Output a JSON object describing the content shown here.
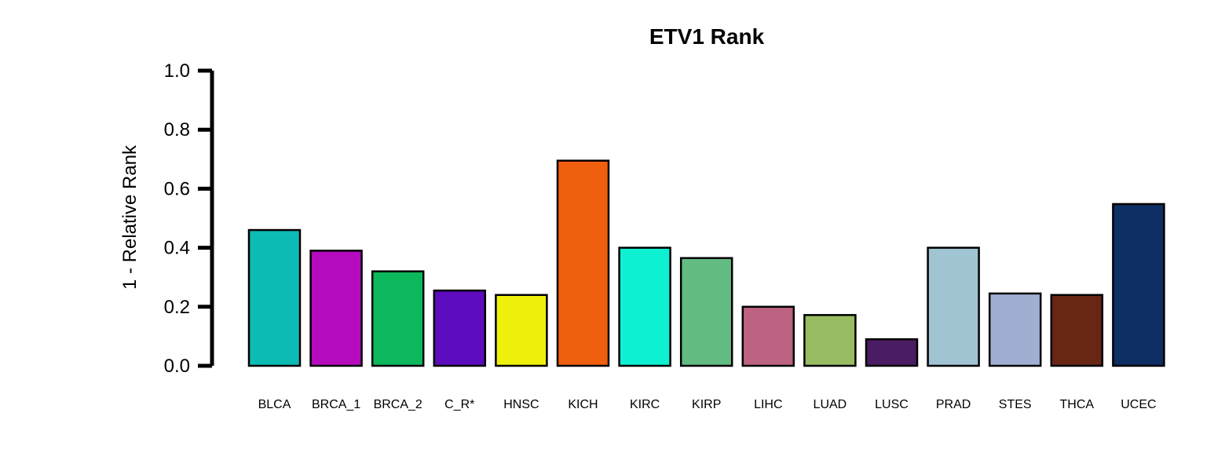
{
  "chart_data": {
    "type": "bar",
    "title": "ETV1 Rank",
    "xlabel": "",
    "ylabel": "1 - Relative Rank",
    "ylim": [
      0,
      1.0
    ],
    "yticks": [
      0.0,
      0.2,
      0.4,
      0.6,
      0.8,
      1.0
    ],
    "ytick_labels": [
      "0.0",
      "0.2",
      "0.4",
      "0.6",
      "0.8",
      "1.0"
    ],
    "grid": false,
    "legend": "none",
    "categories": [
      "BLCA",
      "BRCA_1",
      "BRCA_2",
      "C_R*",
      "HNSC",
      "KICH",
      "KIRC",
      "KIRP",
      "LIHC",
      "LUAD",
      "LUSC",
      "PRAD",
      "STES",
      "THCA",
      "UCEC"
    ],
    "values": [
      0.46,
      0.39,
      0.32,
      0.255,
      0.24,
      0.695,
      0.4,
      0.365,
      0.2,
      0.172,
      0.09,
      0.4,
      0.245,
      0.24,
      0.548
    ],
    "colors": [
      "#0cbcb4",
      "#b40cbc",
      "#0cb85c",
      "#5c0cbc",
      "#eef00c",
      "#f05f0e",
      "#0ef0d2",
      "#62bc82",
      "#bc6282",
      "#98bc62",
      "#4a1c64",
      "#a0c4d2",
      "#a0aed2",
      "#682614",
      "#0e2e64"
    ]
  }
}
